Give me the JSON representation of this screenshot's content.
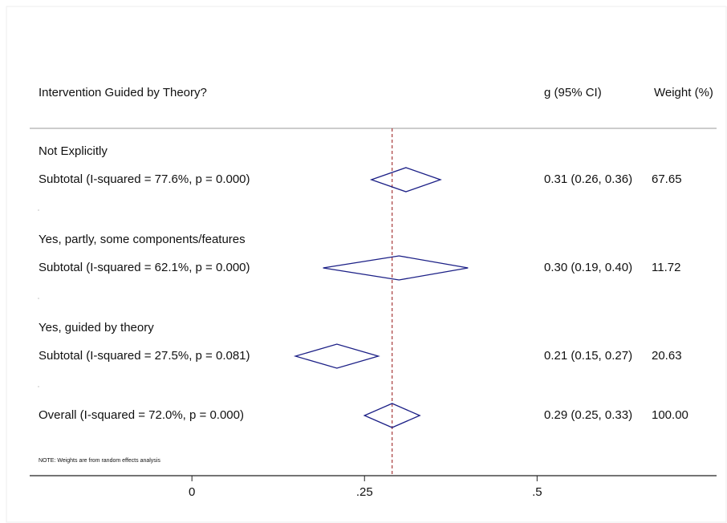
{
  "chart_data": {
    "type": "forest",
    "header": "Intervention Guided by Theory?",
    "col_effect": "g (95% CI)",
    "col_weight": "Weight (%)",
    "color": "#1b1f86",
    "ref_color": "#a83a3a",
    "groups": [
      {
        "label": "Not Explicitly",
        "subtotal_label": "Subtotal  (I-squared = 77.6%, p = 0.000)",
        "estimate": 0.31,
        "lower": 0.26,
        "upper": 0.36,
        "ci_label": "0.31 (0.26, 0.36)",
        "weight": 67.65
      },
      {
        "label": "Yes, partly, some components/features",
        "subtotal_label": "Subtotal  (I-squared = 62.1%, p = 0.000)",
        "estimate": 0.3,
        "lower": 0.19,
        "upper": 0.4,
        "ci_label": "0.30 (0.19, 0.40)",
        "weight": 11.72
      },
      {
        "label": "Yes, guided by theory",
        "subtotal_label": "Subtotal  (I-squared = 27.5%, p = 0.081)",
        "estimate": 0.21,
        "lower": 0.15,
        "upper": 0.27,
        "ci_label": "0.21 (0.15, 0.27)",
        "weight": 20.63
      }
    ],
    "overall": {
      "label": "Overall  (I-squared = 72.0%, p = 0.000)",
      "estimate": 0.29,
      "lower": 0.25,
      "upper": 0.33,
      "ci_label": "0.29 (0.25, 0.33)",
      "weight": 100,
      "weight_label": "100.00"
    },
    "note": "NOTE: Weights are from random effects analysis",
    "xlim": [
      -0.235,
      0.76
    ],
    "xticks": [
      0,
      {
        "value": 0.25,
        "label": ".25"
      },
      {
        "value": 0.5,
        "label": ".5"
      }
    ]
  }
}
